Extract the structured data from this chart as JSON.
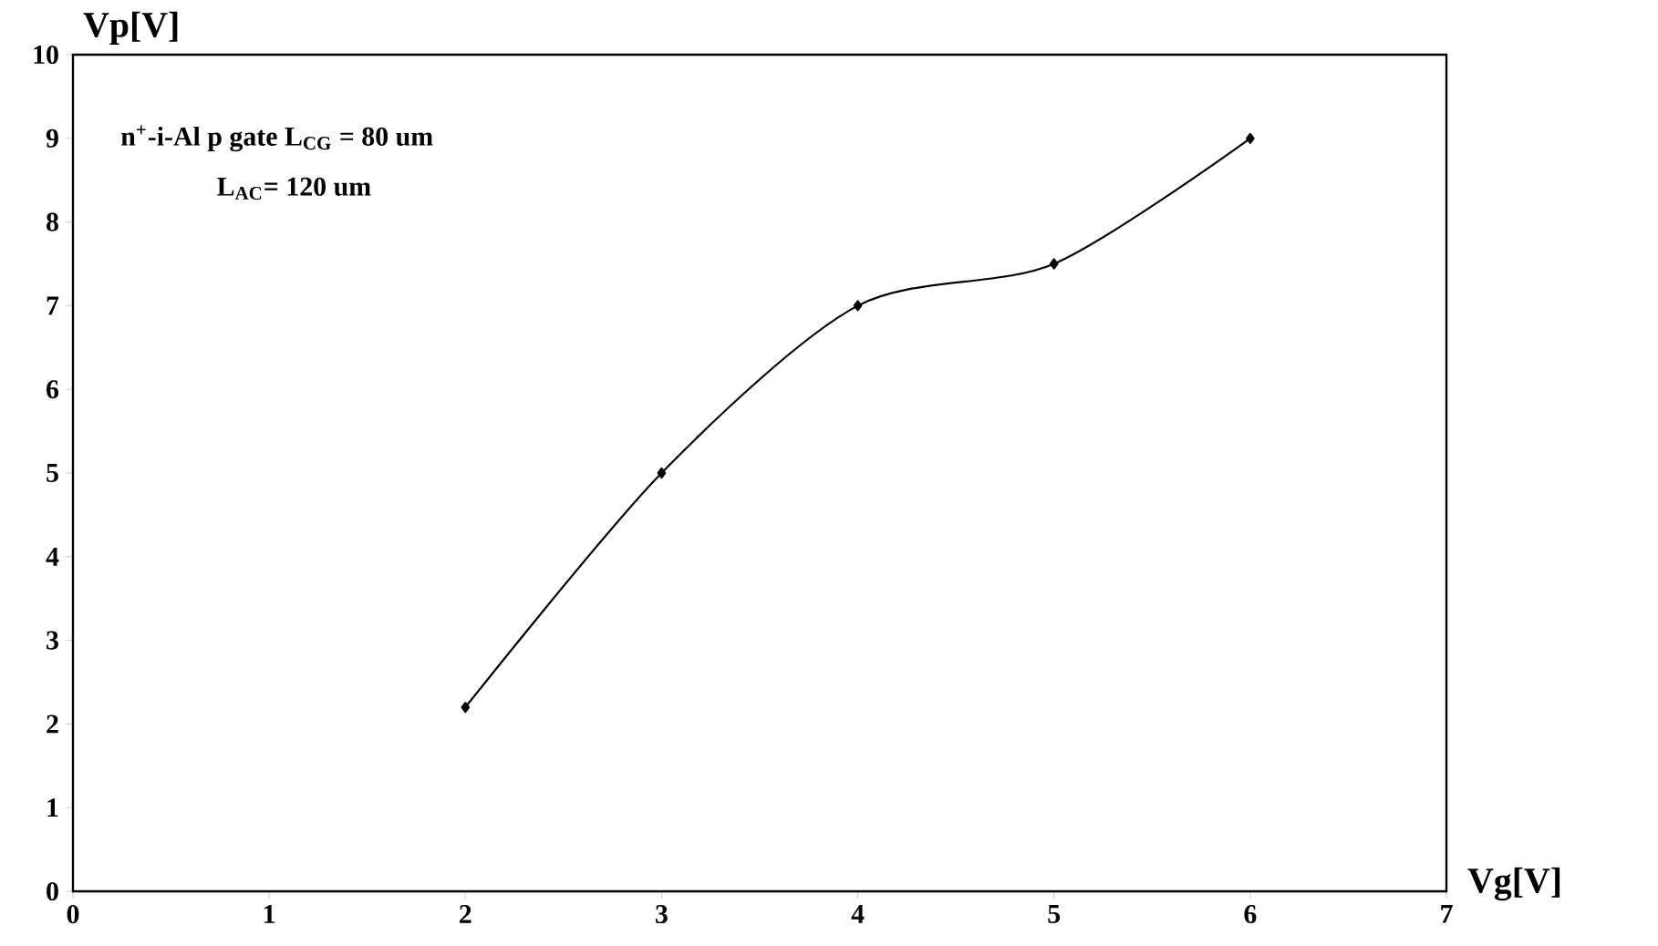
{
  "chart_data": {
    "type": "line",
    "xlabel": "Vg[V]",
    "ylabel": "Vp[V]",
    "x": [
      2,
      3,
      4,
      5,
      6
    ],
    "series": [
      {
        "color": "#000000",
        "values": [
          2.2,
          5.0,
          7.0,
          7.5,
          9.0
        ]
      }
    ],
    "xlim": [
      0,
      7
    ],
    "xticks": [
      0,
      1,
      2,
      3,
      4,
      5,
      6,
      7
    ],
    "ylim": [
      0,
      10
    ],
    "yticks": [
      0,
      1,
      2,
      3,
      4,
      5,
      6,
      7,
      8,
      9,
      10
    ],
    "annotations": [
      "n$^{+}$-i-Al p gate   L$_{CG}$ = 80 um",
      "L$_{AC}$= 120 um"
    ],
    "marker": "diamond",
    "line_style": "solid"
  }
}
